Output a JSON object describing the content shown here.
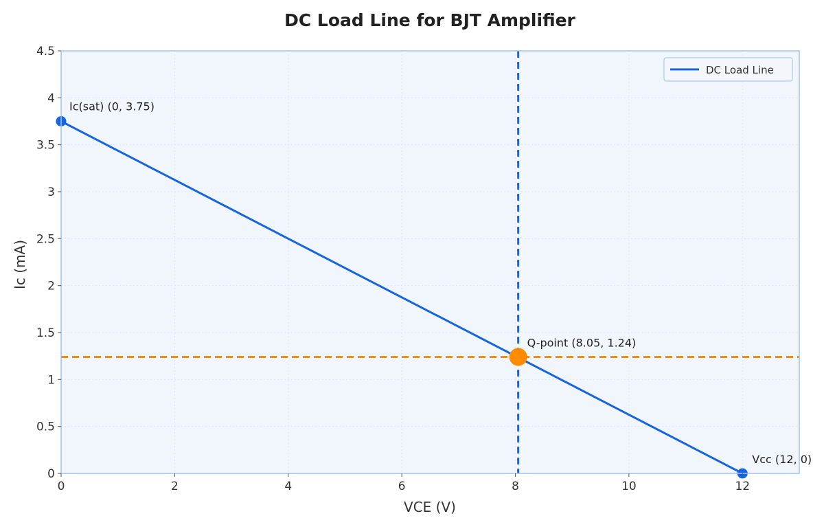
{
  "chart_data": {
    "type": "line",
    "title": "DC Load Line for BJT Amplifier",
    "xlabel": "VCE (V)",
    "ylabel": "Ic (mA)",
    "xlim": [
      0,
      13
    ],
    "ylim": [
      0,
      4.5
    ],
    "xticks": [
      0,
      2,
      4,
      6,
      8,
      10,
      12
    ],
    "yticks": [
      0,
      0.5,
      1,
      1.5,
      2,
      2.5,
      3,
      3.5,
      4,
      4.5
    ],
    "grid": true,
    "legend_position": "top-right",
    "series": [
      {
        "name": "DC Load Line",
        "x": [
          0,
          12
        ],
        "y": [
          3.75,
          0
        ],
        "color": "#1565e0"
      }
    ],
    "endpoints": [
      {
        "x": 0,
        "y": 3.75,
        "label": "Ic(sat) (0, 3.75)"
      },
      {
        "x": 12,
        "y": 0,
        "label": "Vcc (12, 0)"
      }
    ],
    "q_point": {
      "x": 8.05,
      "y": 1.24,
      "label": "Q-point (8.05, 1.24)",
      "color": "#ff8c00"
    },
    "reference_lines": [
      {
        "orientation": "vertical",
        "value": 8.05,
        "style": "dashed",
        "color": "#1565e0"
      },
      {
        "orientation": "horizontal",
        "value": 1.24,
        "style": "dashed",
        "color": "#f28c18"
      }
    ],
    "colors": {
      "plot_background": "#f1f6fc",
      "frame": "#9fc2f0",
      "grid": "#dfe7f1"
    }
  }
}
